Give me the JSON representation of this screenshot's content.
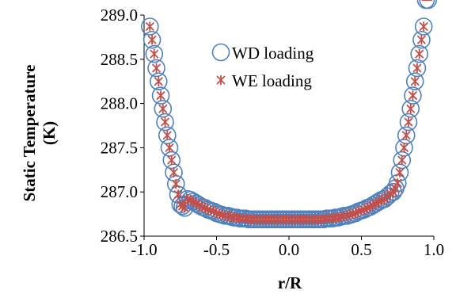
{
  "chart_data": {
    "type": "scatter",
    "xlabel": "r/R",
    "ylabel": "Static Temperature (K)",
    "ylabel_lines": [
      "Static Temperature",
      "(K)"
    ],
    "xlim": [
      -1.0,
      1.0
    ],
    "ylim": [
      286.5,
      289.0
    ],
    "x_ticks": [
      "-1.0",
      "-0.5",
      "0.0",
      "0.5",
      "1.0"
    ],
    "y_ticks": [
      "286.5",
      "287.0",
      "287.5",
      "288.0",
      "288.5",
      "289.0"
    ],
    "grid": false,
    "legend_position": "top-center",
    "x": [
      -0.96,
      -0.945,
      -0.93,
      -0.915,
      -0.9,
      -0.885,
      -0.87,
      -0.855,
      -0.84,
      -0.825,
      -0.81,
      -0.795,
      -0.78,
      -0.765,
      -0.75,
      -0.735,
      -0.72,
      -0.7,
      -0.68,
      -0.66,
      -0.64,
      -0.62,
      -0.6,
      -0.58,
      -0.56,
      -0.54,
      -0.52,
      -0.5,
      -0.48,
      -0.46,
      -0.44,
      -0.42,
      -0.4,
      -0.38,
      -0.36,
      -0.34,
      -0.32,
      -0.3,
      -0.28,
      -0.26,
      -0.24,
      -0.22,
      -0.2,
      -0.18,
      -0.16,
      -0.14,
      -0.12,
      -0.1,
      -0.08,
      -0.06,
      -0.04,
      -0.02,
      0.0,
      0.02,
      0.04,
      0.06,
      0.08,
      0.1,
      0.12,
      0.14,
      0.16,
      0.18,
      0.2,
      0.22,
      0.24,
      0.26,
      0.28,
      0.3,
      0.32,
      0.34,
      0.36,
      0.38,
      0.4,
      0.42,
      0.44,
      0.46,
      0.48,
      0.5,
      0.52,
      0.54,
      0.56,
      0.58,
      0.6,
      0.62,
      0.64,
      0.66,
      0.68,
      0.7,
      0.72,
      0.735,
      0.75,
      0.765,
      0.78,
      0.795,
      0.81,
      0.825,
      0.84,
      0.855,
      0.87,
      0.885,
      0.9,
      0.915,
      0.93,
      0.945,
      0.96
    ],
    "series": [
      {
        "name": "WD loading",
        "marker": "circle",
        "color": "#4f81bd",
        "y": [
          288.87,
          288.72,
          288.56,
          288.4,
          288.25,
          288.09,
          287.94,
          287.79,
          287.64,
          287.5,
          287.36,
          287.22,
          287.09,
          286.97,
          286.86,
          286.84,
          286.82,
          286.92,
          286.91,
          286.89,
          286.87,
          286.85,
          286.83,
          286.82,
          286.8,
          286.79,
          286.78,
          286.76,
          286.75,
          286.74,
          286.73,
          286.73,
          286.72,
          286.71,
          286.71,
          286.7,
          286.7,
          286.7,
          286.69,
          286.69,
          286.69,
          286.69,
          286.69,
          286.69,
          286.69,
          286.69,
          286.69,
          286.69,
          286.69,
          286.69,
          286.69,
          286.69,
          286.69,
          286.69,
          286.69,
          286.69,
          286.69,
          286.69,
          286.69,
          286.69,
          286.69,
          286.69,
          286.69,
          286.69,
          286.69,
          286.7,
          286.7,
          286.7,
          286.71,
          286.71,
          286.72,
          286.73,
          286.73,
          286.74,
          286.75,
          286.76,
          286.78,
          286.79,
          286.8,
          286.82,
          286.83,
          286.85,
          286.87,
          286.89,
          286.91,
          286.92,
          286.95,
          286.98,
          287.0,
          287.04,
          287.1,
          287.22,
          287.36,
          287.5,
          287.64,
          287.79,
          287.94,
          288.09,
          288.25,
          288.4,
          288.56,
          288.72,
          288.87
        ]
      },
      {
        "name": "WE loading",
        "marker": "asterisk",
        "color": "#c0504d",
        "y": [
          288.87,
          288.72,
          288.56,
          288.4,
          288.25,
          288.09,
          287.94,
          287.79,
          287.64,
          287.5,
          287.36,
          287.22,
          287.09,
          286.97,
          286.86,
          286.84,
          286.82,
          286.92,
          286.91,
          286.89,
          286.87,
          286.85,
          286.83,
          286.82,
          286.8,
          286.79,
          286.78,
          286.76,
          286.75,
          286.74,
          286.73,
          286.73,
          286.72,
          286.71,
          286.71,
          286.7,
          286.7,
          286.7,
          286.69,
          286.69,
          286.69,
          286.69,
          286.69,
          286.69,
          286.69,
          286.69,
          286.69,
          286.69,
          286.69,
          286.69,
          286.69,
          286.69,
          286.69,
          286.69,
          286.69,
          286.69,
          286.69,
          286.69,
          286.69,
          286.69,
          286.69,
          286.69,
          286.69,
          286.69,
          286.69,
          286.7,
          286.7,
          286.7,
          286.71,
          286.71,
          286.72,
          286.73,
          286.73,
          286.74,
          286.75,
          286.76,
          286.78,
          286.79,
          286.8,
          286.82,
          286.83,
          286.85,
          286.87,
          286.89,
          286.91,
          286.92,
          286.95,
          286.98,
          287.0,
          287.04,
          287.1,
          287.22,
          287.36,
          287.5,
          287.64,
          287.79,
          287.94,
          288.09,
          288.25,
          288.4,
          288.56,
          288.72,
          288.87
        ]
      }
    ]
  }
}
